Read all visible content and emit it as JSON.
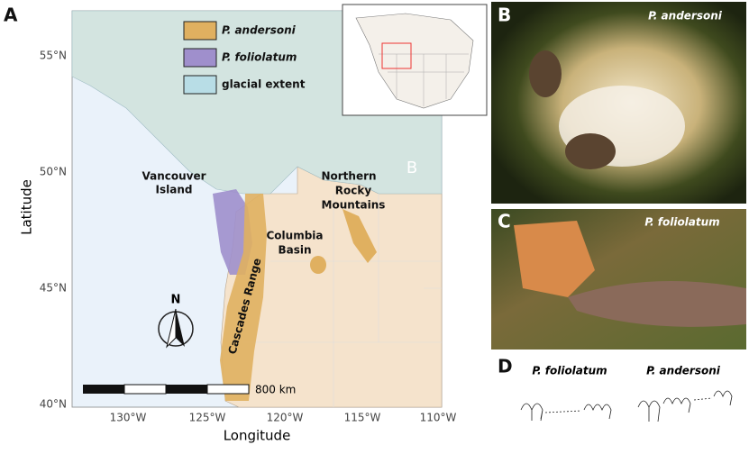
{
  "panel_a": {
    "label": "A",
    "legend": [
      "P. andersoni",
      "P. foliolatum",
      "glacial extent"
    ],
    "map_labels": [
      {
        "lines": [
          "Vancouver",
          "Island"
        ]
      },
      {
        "lines": [
          "Northern",
          "Rocky",
          "Mountains"
        ]
      },
      {
        "lines": [
          "Columbia",
          "Basin"
        ]
      },
      {
        "lines": [
          "Cascades Range"
        ]
      }
    ],
    "inset_label": "B",
    "y_ticks": [
      "55°N",
      "50°N",
      "45°N",
      "40°N"
    ],
    "x_ticks": [
      "130°W",
      "125°W",
      "120°W",
      "115°W",
      "110°W"
    ],
    "y_axis_label": "Latitude",
    "x_axis_label": "Longitude",
    "scale_bar_label": "800 km",
    "north_label": "N"
  },
  "panel_b": {
    "label": "B",
    "caption": "P. andersoni"
  },
  "panel_c": {
    "label": "C",
    "caption": "P. foliolatum"
  },
  "panel_d": {
    "label": "D",
    "species": [
      "P. foliolatum",
      "P. andersoni"
    ]
  }
}
